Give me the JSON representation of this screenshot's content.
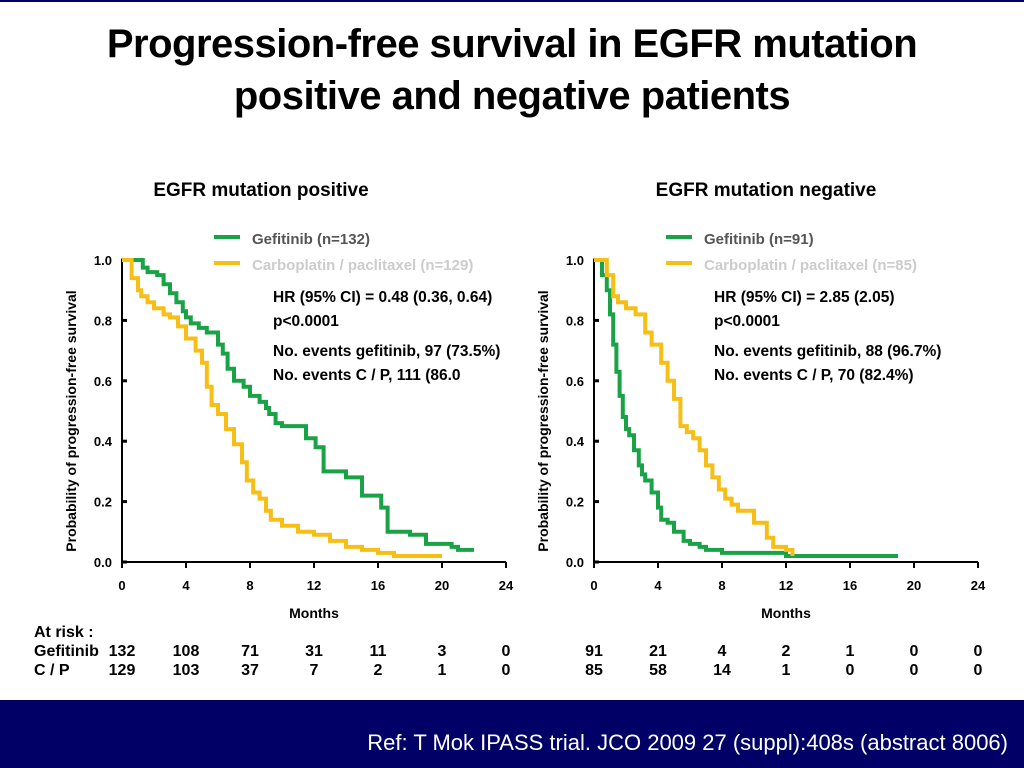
{
  "slide": {
    "title_line1": "Progression-free survival in EGFR mutation",
    "title_line2": "positive and negative patients",
    "reference": "Ref: T Mok IPASS trial. JCO 2009 27 (suppl):408s (abstract 8006)"
  },
  "colors": {
    "gefitinib": "#1aa346",
    "carbo": "#f7be16",
    "footer": "#000066"
  },
  "at_risk": {
    "heading": "At risk :",
    "rows": [
      {
        "label": "Gefitinib",
        "positive": [
          "132",
          "108",
          "71",
          "31",
          "11",
          "3",
          "0"
        ],
        "negative": [
          "91",
          "21",
          "4",
          "2",
          "1",
          "0",
          "0"
        ]
      },
      {
        "label": "C / P",
        "positive": [
          "129",
          "103",
          "37",
          "7",
          "2",
          "1",
          "0"
        ],
        "negative": [
          "85",
          "58",
          "14",
          "1",
          "0",
          "0",
          "0"
        ]
      }
    ]
  },
  "chart_data": [
    {
      "type": "line",
      "title": "EGFR mutation positive",
      "xlabel": "Months",
      "ylabel": "Probability of progression-free survival",
      "xticks": [
        "0",
        "4",
        "8",
        "12",
        "16",
        "20",
        "24"
      ],
      "yticks": [
        "0.0",
        "0.2",
        "0.4",
        "0.6",
        "0.8",
        "1.0"
      ],
      "xlim": [
        0,
        24
      ],
      "ylim": [
        0,
        1
      ],
      "legend_position": "top",
      "annotations": [
        "HR (95% CI) = 0.48 (0.36, 0.64)",
        "p<0.0001",
        "No. events gefitinib,  97 (73.5%)",
        "No. events C / P,  111 (86.0"
      ],
      "series": [
        {
          "name": "Gefitinib (n=132)",
          "color": "#1aa346",
          "x": [
            0,
            1.3,
            1.6,
            2.2,
            2.6,
            3,
            3.4,
            3.8,
            4.0,
            4.3,
            4.8,
            5.3,
            6.0,
            6.3,
            6.6,
            7.0,
            7.6,
            8.0,
            8.6,
            9.0,
            9.2,
            9.6,
            10.0,
            11.5,
            12.1,
            12.6,
            14.0,
            15.0,
            16.2,
            16.6,
            18.0,
            19.0,
            20.6,
            21.0,
            22.0
          ],
          "y": [
            1.0,
            0.975,
            0.96,
            0.95,
            0.92,
            0.89,
            0.86,
            0.83,
            0.81,
            0.79,
            0.775,
            0.76,
            0.72,
            0.69,
            0.64,
            0.6,
            0.58,
            0.55,
            0.53,
            0.51,
            0.49,
            0.46,
            0.45,
            0.41,
            0.38,
            0.3,
            0.28,
            0.22,
            0.18,
            0.1,
            0.09,
            0.06,
            0.05,
            0.04,
            0.04
          ]
        },
        {
          "name": "Carboplatin / paclitaxel (n=129)",
          "color": "#f7be16",
          "x": [
            0,
            0.6,
            1.0,
            1.2,
            1.6,
            2.0,
            2.6,
            3.0,
            3.5,
            4.0,
            4.6,
            5.0,
            5.3,
            5.6,
            6.0,
            6.5,
            7.0,
            7.5,
            7.8,
            8.2,
            8.6,
            9.0,
            9.3,
            10.0,
            11.0,
            12.0,
            13.0,
            14.0,
            15.0,
            16.0,
            17.0,
            18.0,
            20.0
          ],
          "y": [
            1.0,
            0.94,
            0.9,
            0.88,
            0.86,
            0.84,
            0.82,
            0.81,
            0.78,
            0.74,
            0.7,
            0.66,
            0.58,
            0.52,
            0.49,
            0.44,
            0.39,
            0.33,
            0.27,
            0.23,
            0.21,
            0.17,
            0.14,
            0.12,
            0.1,
            0.09,
            0.07,
            0.05,
            0.04,
            0.03,
            0.02,
            0.02,
            0.02
          ]
        }
      ]
    },
    {
      "type": "line",
      "title": "EGFR mutation negative",
      "xlabel": "Months",
      "ylabel": "Probability of progression-free survival",
      "xticks": [
        "0",
        "4",
        "8",
        "12",
        "16",
        "20",
        "24"
      ],
      "yticks": [
        "0.0",
        "0.2",
        "0.4",
        "0.6",
        "0.8",
        "1.0"
      ],
      "xlim": [
        0,
        24
      ],
      "ylim": [
        0,
        1
      ],
      "legend_position": "top",
      "annotations": [
        "HR (95% CI) = 2.85 (2.05)",
        " p<0.0001",
        "No. events gefitinib, 88 (96.7%)",
        "No. events C / P, 70 (82.4%)"
      ],
      "series": [
        {
          "name": "Gefitinib (n=91)",
          "color": "#1aa346",
          "x": [
            0,
            0.5,
            0.8,
            1.0,
            1.2,
            1.4,
            1.6,
            1.8,
            2.0,
            2.2,
            2.5,
            2.8,
            3.0,
            3.2,
            3.6,
            4.0,
            4.2,
            4.6,
            5.0,
            5.6,
            6.0,
            6.6,
            7.0,
            8.0,
            9.0,
            12.0,
            16.0,
            19.0
          ],
          "y": [
            1.0,
            0.95,
            0.9,
            0.82,
            0.72,
            0.63,
            0.55,
            0.48,
            0.44,
            0.42,
            0.37,
            0.32,
            0.29,
            0.27,
            0.23,
            0.18,
            0.14,
            0.13,
            0.1,
            0.07,
            0.06,
            0.05,
            0.04,
            0.03,
            0.03,
            0.02,
            0.02,
            0.02
          ]
        },
        {
          "name": "Carboplatin / paclitaxel (n=85)",
          "color": "#f7be16",
          "x": [
            0,
            0.8,
            1.2,
            1.5,
            2.0,
            2.6,
            3.2,
            3.6,
            4.2,
            4.6,
            5.0,
            5.4,
            5.8,
            6.2,
            6.6,
            7.0,
            7.4,
            7.8,
            8.2,
            8.6,
            9.0,
            10.0,
            10.8,
            11.2,
            12.0,
            12.4
          ],
          "y": [
            1.0,
            0.95,
            0.88,
            0.86,
            0.84,
            0.82,
            0.76,
            0.72,
            0.66,
            0.6,
            0.54,
            0.45,
            0.43,
            0.41,
            0.37,
            0.32,
            0.28,
            0.24,
            0.21,
            0.19,
            0.17,
            0.13,
            0.08,
            0.05,
            0.04,
            0.02
          ]
        }
      ]
    }
  ]
}
